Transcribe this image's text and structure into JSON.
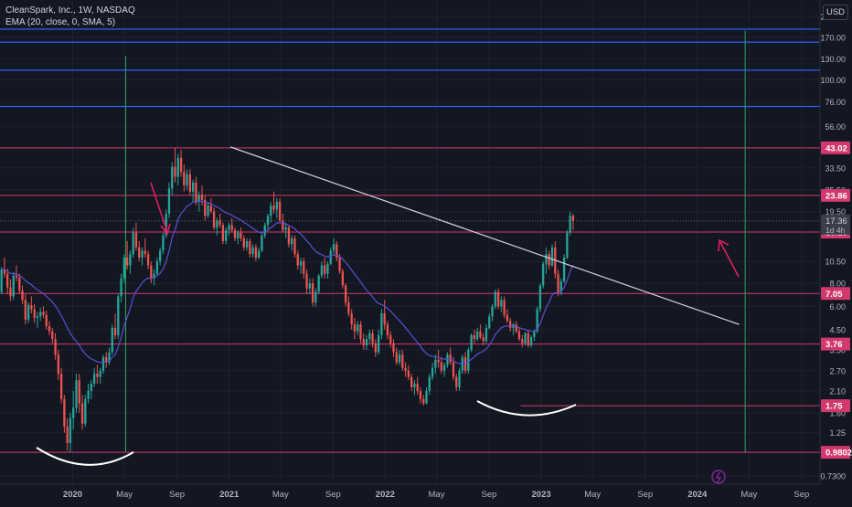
{
  "header": {
    "title": "CleanSpark, Inc., 1W, NASDAQ",
    "indicator": "EMA (20, close, 0, SMA, 5)",
    "currency": "USD"
  },
  "colors": {
    "background": "#131722",
    "up": "#26a69a",
    "down": "#ef5350",
    "ema": "#5b4fd6",
    "support_resistance": "#d2386c",
    "blue_levels": "#2962ff",
    "trendline": "#d1d4dc",
    "vertical_marker": "#26a65b",
    "arrow": "#e91e63",
    "annotation_curve": "#ffffff"
  },
  "chart_data": {
    "type": "candlestick",
    "scale": "log",
    "symbol": "CLSK",
    "interval": "1W",
    "ylim": [
      0.66,
      270
    ],
    "xlim": [
      "2019-07-15",
      "2024-10-14"
    ],
    "y_ticks": [
      "220.00",
      "170.00",
      "130.00",
      "100.00",
      "76.00",
      "56.00",
      "33.50",
      "25.50",
      "19.50",
      "10.50",
      "8.00",
      "6.00",
      "4.50",
      "3.50",
      "2.70",
      "2.10",
      "1.60",
      "1.25",
      "0.7300"
    ],
    "x_ticks": [
      {
        "label": "2020",
        "date": "2020-01-01"
      },
      {
        "label": "May",
        "date": "2020-05-01"
      },
      {
        "label": "Sep",
        "date": "2020-09-01"
      },
      {
        "label": "2021",
        "date": "2021-01-01"
      },
      {
        "label": "May",
        "date": "2021-05-01"
      },
      {
        "label": "Sep",
        "date": "2021-09-01"
      },
      {
        "label": "2022",
        "date": "2022-01-01"
      },
      {
        "label": "May",
        "date": "2022-05-01"
      },
      {
        "label": "Sep",
        "date": "2022-09-01"
      },
      {
        "label": "2023",
        "date": "2023-01-01"
      },
      {
        "label": "May",
        "date": "2023-05-01"
      },
      {
        "label": "Sep",
        "date": "2023-09-01"
      },
      {
        "label": "2024",
        "date": "2024-01-01"
      },
      {
        "label": "May",
        "date": "2024-05-01"
      },
      {
        "label": "Sep",
        "date": "2024-09-01"
      }
    ],
    "price_levels": [
      {
        "value": 43.02,
        "label": "43.02",
        "start": "2019-07-15"
      },
      {
        "value": 23.86,
        "label": "23.86",
        "start": "2019-07-15"
      },
      {
        "value": 15.13,
        "label": "15.13",
        "start": "2019-07-15"
      },
      {
        "value": 7.05,
        "label": "7.05",
        "start": "2019-07-15"
      },
      {
        "value": 3.76,
        "label": "3.76",
        "start": "2019-07-15"
      },
      {
        "value": 1.75,
        "label": "1.75",
        "start": "2022-11-14"
      },
      {
        "value": 0.9802,
        "label": "0.9802",
        "start": "2019-07-15"
      }
    ],
    "blue_levels": [
      188,
      160,
      113,
      72
    ],
    "current_price": {
      "value": 17.36,
      "label": "17.36",
      "countdown": "1d 4h"
    },
    "trendline": {
      "start": {
        "date": "2021-01-04",
        "value": 43.5
      },
      "end": {
        "date": "2024-04-08",
        "value": 4.8
      }
    },
    "vertical_markers": [
      {
        "date": "2020-05-04",
        "top": 135,
        "bottom": 0.98
      },
      {
        "date": "2024-04-22",
        "top": 185,
        "bottom": 0.98
      }
    ],
    "candles_ohlc": [
      [
        7.2,
        9.8,
        7.0,
        9.5
      ],
      [
        9.5,
        11.0,
        8.6,
        9.0
      ],
      [
        9.0,
        9.6,
        7.0,
        7.6
      ],
      [
        7.6,
        8.4,
        6.4,
        6.8
      ],
      [
        6.8,
        9.2,
        6.5,
        8.8
      ],
      [
        8.8,
        10.0,
        8.2,
        8.6
      ],
      [
        8.6,
        9.0,
        7.0,
        7.3
      ],
      [
        7.3,
        7.8,
        6.2,
        6.5
      ],
      [
        6.5,
        7.0,
        4.8,
        5.1
      ],
      [
        5.1,
        6.3,
        4.9,
        6.1
      ],
      [
        6.1,
        6.8,
        5.5,
        5.8
      ],
      [
        5.8,
        6.2,
        4.9,
        5.2
      ],
      [
        5.2,
        5.6,
        4.6,
        5.3
      ],
      [
        5.3,
        5.9,
        5.0,
        5.6
      ],
      [
        5.6,
        6.0,
        5.2,
        5.4
      ],
      [
        5.4,
        5.7,
        4.5,
        4.7
      ],
      [
        4.7,
        5.0,
        4.2,
        4.4
      ],
      [
        4.4,
        4.6,
        3.8,
        4.0
      ],
      [
        4.0,
        4.3,
        3.1,
        3.3
      ],
      [
        3.3,
        3.5,
        2.4,
        2.6
      ],
      [
        2.6,
        2.8,
        1.8,
        1.9
      ],
      [
        1.9,
        2.0,
        1.25,
        1.35
      ],
      [
        1.35,
        1.5,
        1.0,
        1.1
      ],
      [
        1.1,
        1.6,
        0.98,
        1.5
      ],
      [
        1.5,
        2.1,
        1.3,
        1.7
      ],
      [
        1.7,
        2.6,
        1.6,
        2.4
      ],
      [
        2.4,
        2.6,
        1.6,
        1.8
      ],
      [
        1.8,
        2.0,
        1.3,
        1.4
      ],
      [
        1.4,
        2.0,
        1.35,
        1.9
      ],
      [
        1.9,
        2.3,
        1.8,
        2.1
      ],
      [
        2.1,
        2.4,
        1.9,
        2.3
      ],
      [
        2.3,
        2.8,
        2.2,
        2.6
      ],
      [
        2.6,
        2.9,
        2.3,
        2.5
      ],
      [
        2.5,
        2.8,
        2.3,
        2.7
      ],
      [
        2.7,
        3.3,
        2.6,
        3.2
      ],
      [
        3.2,
        3.4,
        2.8,
        3.0
      ],
      [
        3.0,
        3.6,
        2.9,
        3.4
      ],
      [
        3.4,
        4.8,
        3.3,
        4.6
      ],
      [
        4.6,
        5.5,
        4.0,
        4.2
      ],
      [
        4.2,
        7.0,
        4.0,
        6.8
      ],
      [
        6.8,
        9.0,
        6.3,
        8.5
      ],
      [
        8.5,
        11.5,
        8.0,
        11.0
      ],
      [
        11.0,
        13.5,
        9.5,
        10.0
      ],
      [
        10.0,
        12.0,
        9.0,
        11.5
      ],
      [
        11.5,
        16.0,
        11.0,
        15.0
      ],
      [
        15.0,
        17.0,
        12.0,
        12.5
      ],
      [
        12.5,
        13.5,
        10.5,
        11.0
      ],
      [
        11.0,
        12.5,
        10.0,
        12.0
      ],
      [
        12.0,
        14.0,
        11.0,
        11.5
      ],
      [
        11.5,
        12.0,
        9.5,
        10.0
      ],
      [
        10.0,
        10.5,
        8.0,
        8.5
      ],
      [
        8.5,
        9.5,
        7.8,
        9.0
      ],
      [
        9.0,
        11.0,
        8.8,
        10.5
      ],
      [
        10.5,
        12.5,
        10.0,
        12.0
      ],
      [
        12.0,
        15.0,
        11.5,
        14.5
      ],
      [
        14.5,
        20.0,
        14.0,
        19.0
      ],
      [
        19.0,
        28.0,
        18.0,
        26.0
      ],
      [
        26.0,
        36.0,
        24.0,
        34.0
      ],
      [
        34.0,
        43.0,
        28.0,
        30.0
      ],
      [
        30.0,
        40.0,
        27.0,
        38.0
      ],
      [
        38.0,
        42.0,
        30.0,
        32.0
      ],
      [
        32.0,
        35.0,
        25.0,
        27.0
      ],
      [
        27.0,
        33.0,
        25.5,
        31.0
      ],
      [
        31.0,
        33.0,
        24.0,
        25.0
      ],
      [
        25.0,
        29.0,
        22.0,
        28.0
      ],
      [
        28.0,
        30.0,
        21.0,
        22.0
      ],
      [
        22.0,
        25.0,
        19.5,
        24.0
      ],
      [
        24.0,
        27.0,
        21.0,
        22.5
      ],
      [
        22.5,
        24.0,
        17.5,
        18.5
      ],
      [
        18.5,
        22.0,
        18.0,
        21.0
      ],
      [
        21.0,
        23.0,
        19.0,
        19.5
      ],
      [
        19.5,
        20.5,
        15.5,
        16.0
      ],
      [
        16.0,
        18.0,
        14.5,
        17.5
      ],
      [
        17.5,
        19.0,
        16.0,
        16.5
      ],
      [
        16.5,
        17.0,
        13.0,
        13.5
      ],
      [
        13.5,
        16.0,
        13.0,
        15.5
      ],
      [
        15.5,
        17.0,
        14.5,
        16.5
      ],
      [
        16.5,
        18.0,
        15.0,
        15.5
      ],
      [
        15.5,
        16.0,
        13.5,
        14.0
      ],
      [
        14.0,
        15.5,
        13.0,
        15.0
      ],
      [
        15.0,
        16.0,
        13.5,
        14.0
      ],
      [
        14.0,
        14.5,
        12.0,
        12.5
      ],
      [
        12.5,
        14.0,
        12.0,
        13.5
      ],
      [
        13.5,
        14.0,
        11.0,
        11.5
      ],
      [
        11.5,
        13.0,
        11.0,
        12.5
      ],
      [
        12.5,
        13.0,
        10.5,
        11.0
      ],
      [
        11.0,
        12.5,
        10.8,
        12.0
      ],
      [
        12.0,
        15.0,
        11.8,
        14.5
      ],
      [
        14.5,
        17.0,
        14.0,
        16.5
      ],
      [
        16.5,
        19.0,
        15.5,
        18.5
      ],
      [
        18.5,
        22.0,
        17.0,
        21.0
      ],
      [
        21.0,
        25.0,
        19.0,
        20.0
      ],
      [
        20.0,
        23.0,
        18.0,
        22.0
      ],
      [
        22.0,
        23.0,
        17.0,
        17.5
      ],
      [
        17.5,
        19.0,
        15.0,
        15.5
      ],
      [
        15.5,
        17.0,
        14.0,
        16.0
      ],
      [
        16.0,
        16.5,
        12.5,
        13.0
      ],
      [
        13.0,
        14.5,
        12.0,
        14.0
      ],
      [
        14.0,
        14.5,
        11.0,
        11.5
      ],
      [
        11.5,
        12.0,
        9.5,
        10.0
      ],
      [
        10.0,
        11.0,
        9.0,
        10.5
      ],
      [
        10.5,
        11.0,
        8.5,
        9.0
      ],
      [
        9.0,
        9.5,
        7.0,
        7.5
      ],
      [
        7.5,
        8.5,
        7.0,
        8.0
      ],
      [
        8.0,
        8.5,
        6.0,
        6.3
      ],
      [
        6.3,
        7.5,
        6.0,
        7.2
      ],
      [
        7.2,
        9.0,
        7.0,
        8.8
      ],
      [
        8.8,
        10.5,
        8.5,
        10.0
      ],
      [
        10.0,
        11.0,
        8.5,
        9.0
      ],
      [
        9.0,
        10.5,
        8.5,
        10.2
      ],
      [
        10.2,
        12.5,
        10.0,
        12.0
      ],
      [
        12.0,
        14.0,
        11.5,
        13.0
      ],
      [
        13.0,
        13.5,
        10.5,
        11.0
      ],
      [
        11.0,
        11.5,
        9.0,
        9.3
      ],
      [
        9.3,
        9.6,
        7.5,
        7.8
      ],
      [
        7.8,
        8.0,
        6.0,
        6.3
      ],
      [
        6.3,
        6.8,
        5.3,
        5.5
      ],
      [
        5.5,
        5.8,
        4.5,
        4.8
      ],
      [
        4.8,
        5.2,
        4.0,
        4.4
      ],
      [
        4.4,
        5.0,
        4.2,
        4.8
      ],
      [
        4.8,
        5.0,
        3.8,
        4.0
      ],
      [
        4.0,
        4.3,
        3.5,
        3.7
      ],
      [
        3.7,
        4.2,
        3.5,
        4.0
      ],
      [
        4.0,
        4.5,
        3.8,
        4.3
      ],
      [
        4.3,
        4.5,
        3.6,
        3.8
      ],
      [
        3.8,
        4.0,
        3.2,
        3.4
      ],
      [
        3.4,
        4.5,
        3.3,
        4.2
      ],
      [
        4.2,
        5.8,
        4.0,
        5.5
      ],
      [
        5.5,
        6.5,
        4.5,
        4.8
      ],
      [
        4.8,
        5.0,
        4.0,
        4.2
      ],
      [
        4.2,
        4.4,
        3.6,
        3.8
      ],
      [
        3.8,
        4.0,
        3.2,
        3.4
      ],
      [
        3.4,
        3.6,
        2.9,
        3.0
      ],
      [
        3.0,
        3.5,
        2.9,
        3.3
      ],
      [
        3.3,
        3.5,
        2.7,
        2.8
      ],
      [
        2.8,
        3.0,
        2.5,
        2.7
      ],
      [
        2.7,
        2.9,
        2.4,
        2.5
      ],
      [
        2.5,
        2.6,
        2.1,
        2.2
      ],
      [
        2.2,
        2.4,
        2.0,
        2.3
      ],
      [
        2.3,
        2.5,
        2.0,
        2.1
      ],
      [
        2.1,
        2.2,
        1.8,
        1.9
      ],
      [
        1.9,
        2.0,
        1.75,
        1.8
      ],
      [
        1.8,
        2.2,
        1.78,
        2.1
      ],
      [
        2.1,
        2.6,
        2.0,
        2.5
      ],
      [
        2.5,
        3.0,
        2.4,
        2.8
      ],
      [
        2.8,
        3.3,
        2.6,
        3.1
      ],
      [
        3.1,
        3.5,
        2.8,
        3.0
      ],
      [
        3.0,
        3.2,
        2.6,
        2.7
      ],
      [
        2.7,
        3.0,
        2.5,
        2.9
      ],
      [
        2.9,
        3.4,
        2.8,
        3.3
      ],
      [
        3.3,
        3.6,
        2.9,
        3.0
      ],
      [
        3.0,
        3.2,
        2.4,
        2.5
      ],
      [
        2.5,
        2.6,
        2.1,
        2.2
      ],
      [
        2.2,
        2.8,
        2.1,
        2.7
      ],
      [
        2.7,
        3.3,
        2.6,
        3.2
      ],
      [
        3.2,
        3.4,
        2.6,
        2.7
      ],
      [
        2.7,
        3.6,
        2.6,
        3.5
      ],
      [
        3.5,
        4.3,
        3.4,
        4.2
      ],
      [
        4.2,
        4.5,
        3.8,
        4.0
      ],
      [
        4.0,
        4.6,
        3.9,
        4.4
      ],
      [
        4.4,
        4.8,
        4.0,
        4.1
      ],
      [
        4.1,
        4.3,
        3.7,
        3.9
      ],
      [
        3.9,
        4.8,
        3.8,
        4.6
      ],
      [
        4.6,
        5.5,
        4.5,
        5.3
      ],
      [
        5.3,
        6.2,
        5.0,
        6.0
      ],
      [
        6.0,
        7.4,
        5.8,
        7.2
      ],
      [
        7.2,
        7.5,
        5.8,
        6.0
      ],
      [
        6.0,
        6.8,
        5.6,
        6.5
      ],
      [
        6.5,
        6.8,
        5.2,
        5.4
      ],
      [
        5.4,
        5.8,
        4.9,
        5.0
      ],
      [
        5.0,
        5.2,
        4.4,
        4.6
      ],
      [
        4.6,
        4.9,
        4.2,
        4.8
      ],
      [
        4.8,
        5.0,
        4.3,
        4.4
      ],
      [
        4.4,
        4.6,
        3.9,
        4.0
      ],
      [
        4.0,
        4.2,
        3.6,
        3.8
      ],
      [
        3.8,
        4.4,
        3.7,
        4.3
      ],
      [
        4.3,
        4.5,
        3.6,
        3.7
      ],
      [
        3.7,
        4.2,
        3.6,
        4.1
      ],
      [
        4.1,
        4.5,
        3.9,
        4.4
      ],
      [
        4.4,
        6.0,
        4.3,
        5.8
      ],
      [
        5.8,
        8.0,
        5.6,
        7.8
      ],
      [
        7.8,
        10.5,
        7.5,
        10.2
      ],
      [
        10.2,
        12.5,
        9.0,
        11.5
      ],
      [
        11.5,
        12.0,
        9.5,
        10.0
      ],
      [
        10.0,
        13.0,
        9.8,
        12.5
      ],
      [
        12.5,
        13.5,
        8.5,
        9.0
      ],
      [
        9.0,
        9.5,
        6.8,
        7.2
      ],
      [
        7.2,
        8.5,
        6.9,
        8.2
      ],
      [
        8.2,
        11.5,
        8.0,
        11.0
      ],
      [
        11.0,
        15.5,
        10.8,
        15.0
      ],
      [
        15.0,
        19.5,
        14.5,
        18.5
      ],
      [
        18.5,
        19.0,
        15.5,
        17.36
      ]
    ]
  }
}
